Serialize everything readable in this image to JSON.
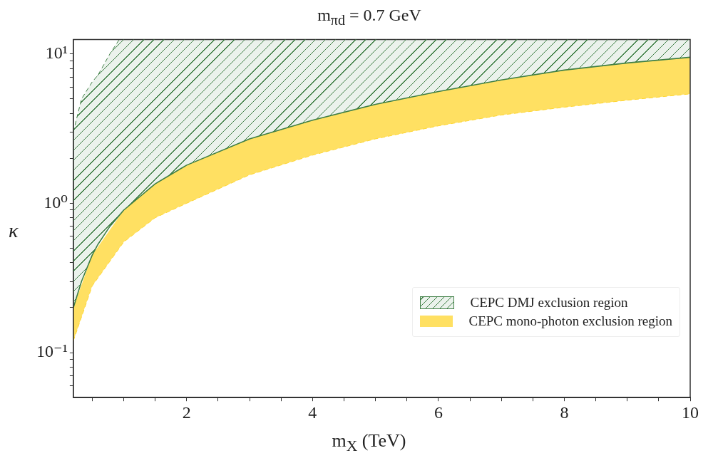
{
  "chart_data": {
    "type": "line",
    "title": "m$_{πd}$ = 0.7 GeV",
    "xlabel": "m$_{X}$ (TeV)",
    "ylabel": "κ",
    "log": "y",
    "legend": "bottom right",
    "xlim": [
      0.2,
      10
    ],
    "ylim": [
      0.05,
      12.5
    ],
    "xticks": [
      {
        "value": 0.5,
        "label": null
      },
      {
        "value": 1,
        "label": null
      },
      {
        "value": 1.5,
        "label": null
      },
      2,
      {
        "value": 2.5,
        "label": null
      },
      {
        "value": 3,
        "label": null
      },
      {
        "value": 3.5,
        "label": null
      },
      4,
      {
        "value": 4.5,
        "label": null
      },
      {
        "value": 5,
        "label": null
      },
      {
        "value": 5.5,
        "label": null
      },
      6,
      {
        "value": 6.5,
        "label": null
      },
      {
        "value": 7,
        "label": null
      },
      {
        "value": 7.5,
        "label": null
      },
      8,
      {
        "value": 8.5,
        "label": null
      },
      {
        "value": 9,
        "label": null
      },
      {
        "value": 9.5,
        "label": null
      },
      10
    ],
    "yticks": [
      {
        "value": 0.06,
        "label": null
      },
      {
        "value": 0.07,
        "label": null
      },
      {
        "value": 0.08,
        "label": null
      },
      {
        "value": 0.09,
        "label": null
      },
      {
        "value": 0.1,
        "label": "10⁻¹"
      },
      {
        "value": 0.2,
        "label": null
      },
      {
        "value": 0.3,
        "label": null
      },
      {
        "value": 0.4,
        "label": null
      },
      {
        "value": 0.5,
        "label": null
      },
      {
        "value": 0.6,
        "label": null
      },
      {
        "value": 0.7,
        "label": null
      },
      {
        "value": 0.8,
        "label": null
      },
      {
        "value": 0.9,
        "label": null
      },
      {
        "value": 1,
        "label": "10⁰"
      },
      {
        "value": 2,
        "label": null
      },
      {
        "value": 3,
        "label": null
      },
      {
        "value": 4,
        "label": null
      },
      {
        "value": 5,
        "label": null
      },
      {
        "value": 6,
        "label": null
      },
      {
        "value": 7,
        "label": null
      },
      {
        "value": 8,
        "label": null
      },
      {
        "value": 9,
        "label": null
      },
      {
        "value": 10,
        "label": "10¹"
      }
    ],
    "series": [
      {
        "name": "CEPC mono-photon exclusion region",
        "color": "#ffd52e",
        "line_style": "dashed",
        "x": [
          0.2,
          0.5,
          1,
          1.5,
          2,
          3,
          4,
          5,
          6,
          7,
          8,
          9,
          10
        ],
        "values": [
          0.12,
          0.28,
          0.55,
          0.8,
          1.0,
          1.55,
          2.1,
          2.7,
          3.3,
          3.9,
          4.4,
          4.9,
          5.4
        ],
        "lower": [
          0.12,
          0.28,
          0.55,
          0.8,
          1.0,
          1.55,
          2.1,
          2.7,
          3.3,
          3.9,
          4.4,
          4.9,
          5.4
        ],
        "upper": [
          0.2,
          0.45,
          0.9,
          1.35,
          1.8,
          2.7,
          3.6,
          4.6,
          5.6,
          6.7,
          7.8,
          8.7,
          9.5
        ]
      },
      {
        "name": "CEPC DMJ exclusion region",
        "color": "#3f7f45",
        "line_style": "solid",
        "x": [
          0.2,
          0.33,
          0.5,
          0.59,
          0.78,
          0.93,
          1,
          1.5,
          2,
          3,
          4,
          5,
          6,
          7,
          8,
          9,
          10
        ],
        "values": [
          0.2,
          0.3,
          0.45,
          0.53,
          0.7,
          0.83,
          0.9,
          1.35,
          1.8,
          2.7,
          3.6,
          4.6,
          5.6,
          6.7,
          7.8,
          8.7,
          9.5
        ],
        "lower": [
          0.2,
          0.3,
          0.45,
          0.53,
          0.7,
          0.83,
          0.9,
          1.35,
          1.8,
          2.7,
          3.6,
          4.6,
          5.6,
          6.7,
          7.8,
          8.7,
          9.5
        ],
        "upper": [
          3,
          5,
          6.5,
          7.2,
          10,
          12.5,
          12.5,
          12.5,
          12.5,
          12.5,
          12.5,
          12.5,
          12.5,
          12.5,
          12.5,
          12.5,
          12.5
        ]
      },
      {
        "color": "#3f7f45",
        "line_style": "dashed",
        "x": [
          0.2,
          0.33,
          0.5,
          0.59,
          0.78,
          0.93
        ],
        "values": [
          3,
          5,
          6.5,
          7.2,
          10,
          12.5
        ]
      }
    ]
  }
}
